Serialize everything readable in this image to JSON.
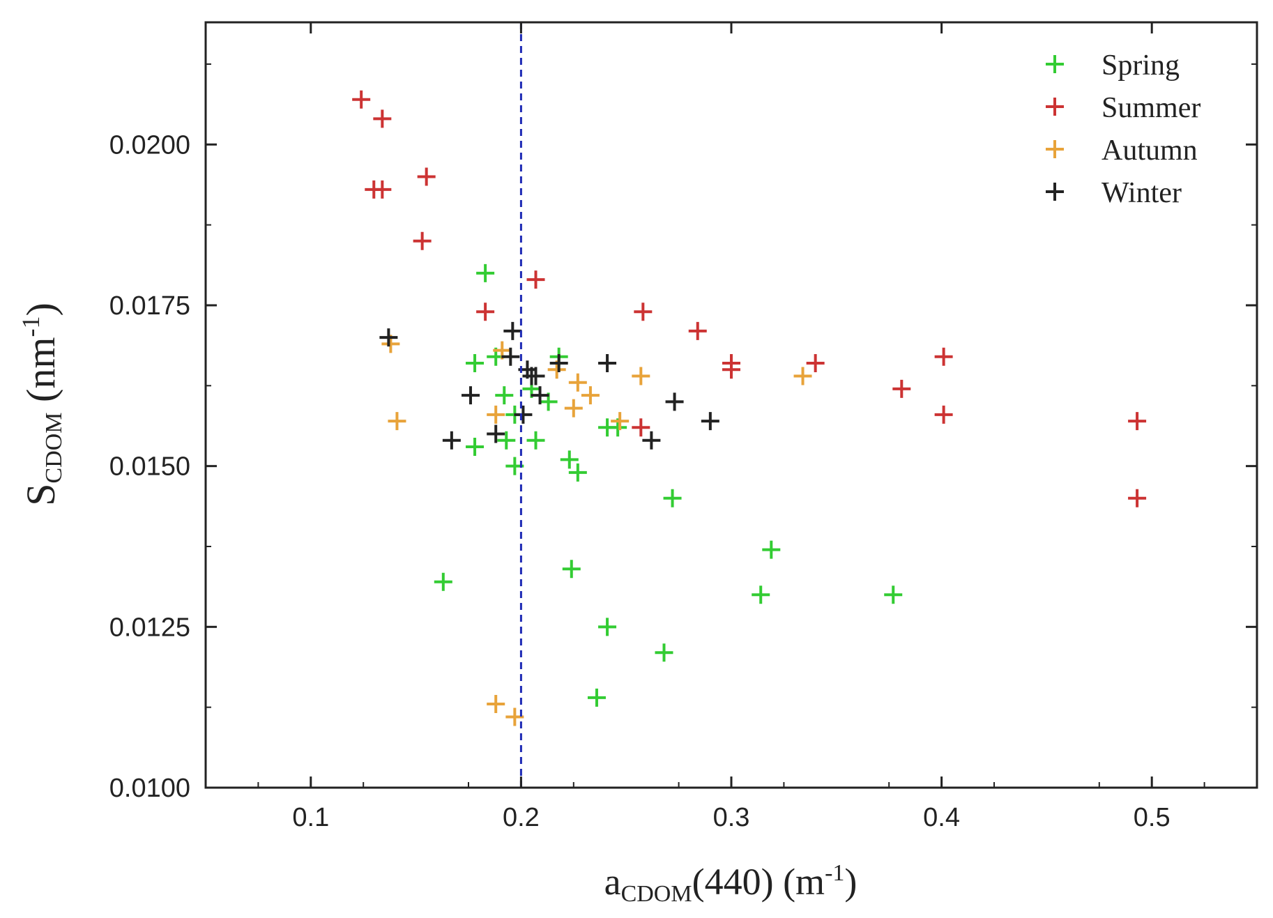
{
  "chart_data": {
    "type": "scatter",
    "title": "",
    "xlabel": {
      "main": "a",
      "sub": "CDOM",
      "rest": "(440) (m",
      "sup": "-1",
      "close": ")"
    },
    "ylabel": {
      "main": "S",
      "sub": "CDOM",
      "rest": " (nm",
      "sup": "-1",
      "close": ")"
    },
    "xlim": [
      0.05,
      0.55
    ],
    "ylim": [
      0.01,
      0.0219
    ],
    "xticks": [
      0.1,
      0.2,
      0.3,
      0.4,
      0.5
    ],
    "xtick_labels": [
      "0.1",
      "0.2",
      "0.3",
      "0.4",
      "0.5"
    ],
    "yticks": [
      0.01,
      0.0125,
      0.015,
      0.0175,
      0.02
    ],
    "ytick_labels": [
      "0.0100",
      "0.0125",
      "0.0150",
      "0.0175",
      "0.0200"
    ],
    "grid": false,
    "legend_position": "top-right",
    "reference_line": {
      "x": 0.2,
      "style": "dashed",
      "color": "#1f2bb5"
    },
    "series": [
      {
        "name": "Spring",
        "color": "#33cc33",
        "points": [
          [
            0.183,
            0.018
          ],
          [
            0.178,
            0.0166
          ],
          [
            0.188,
            0.0167
          ],
          [
            0.192,
            0.0161
          ],
          [
            0.178,
            0.0153
          ],
          [
            0.193,
            0.0154
          ],
          [
            0.197,
            0.0158
          ],
          [
            0.205,
            0.0162
          ],
          [
            0.207,
            0.0154
          ],
          [
            0.213,
            0.016
          ],
          [
            0.218,
            0.0167
          ],
          [
            0.223,
            0.0151
          ],
          [
            0.227,
            0.0149
          ],
          [
            0.241,
            0.0156
          ],
          [
            0.246,
            0.0156
          ],
          [
            0.197,
            0.015
          ],
          [
            0.272,
            0.0145
          ],
          [
            0.163,
            0.0132
          ],
          [
            0.224,
            0.0134
          ],
          [
            0.319,
            0.0137
          ],
          [
            0.314,
            0.013
          ],
          [
            0.377,
            0.013
          ],
          [
            0.241,
            0.0125
          ],
          [
            0.268,
            0.0121
          ],
          [
            0.236,
            0.0114
          ]
        ]
      },
      {
        "name": "Summer",
        "color": "#cc3333",
        "points": [
          [
            0.124,
            0.0207
          ],
          [
            0.134,
            0.0204
          ],
          [
            0.13,
            0.0193
          ],
          [
            0.134,
            0.0193
          ],
          [
            0.155,
            0.0195
          ],
          [
            0.153,
            0.0185
          ],
          [
            0.207,
            0.0179
          ],
          [
            0.183,
            0.0174
          ],
          [
            0.258,
            0.0174
          ],
          [
            0.284,
            0.0171
          ],
          [
            0.3,
            0.0166
          ],
          [
            0.3,
            0.0165
          ],
          [
            0.34,
            0.0166
          ],
          [
            0.401,
            0.0167
          ],
          [
            0.381,
            0.0162
          ],
          [
            0.401,
            0.0158
          ],
          [
            0.257,
            0.0156
          ],
          [
            0.493,
            0.0157
          ],
          [
            0.493,
            0.0145
          ]
        ]
      },
      {
        "name": "Autumn",
        "color": "#e8a33a",
        "points": [
          [
            0.138,
            0.0169
          ],
          [
            0.141,
            0.0157
          ],
          [
            0.191,
            0.0168
          ],
          [
            0.188,
            0.0158
          ],
          [
            0.217,
            0.0165
          ],
          [
            0.227,
            0.0163
          ],
          [
            0.225,
            0.0159
          ],
          [
            0.233,
            0.0161
          ],
          [
            0.247,
            0.0157
          ],
          [
            0.257,
            0.0164
          ],
          [
            0.334,
            0.0164
          ],
          [
            0.188,
            0.0113
          ],
          [
            0.197,
            0.0111
          ]
        ]
      },
      {
        "name": "Winter",
        "color": "#222222",
        "points": [
          [
            0.137,
            0.017
          ],
          [
            0.196,
            0.0171
          ],
          [
            0.195,
            0.0167
          ],
          [
            0.203,
            0.0165
          ],
          [
            0.205,
            0.0164
          ],
          [
            0.207,
            0.0164
          ],
          [
            0.218,
            0.0166
          ],
          [
            0.209,
            0.0161
          ],
          [
            0.176,
            0.0161
          ],
          [
            0.201,
            0.0158
          ],
          [
            0.188,
            0.0155
          ],
          [
            0.167,
            0.0154
          ],
          [
            0.241,
            0.0166
          ],
          [
            0.273,
            0.016
          ],
          [
            0.29,
            0.0157
          ],
          [
            0.262,
            0.0154
          ]
        ]
      }
    ]
  }
}
